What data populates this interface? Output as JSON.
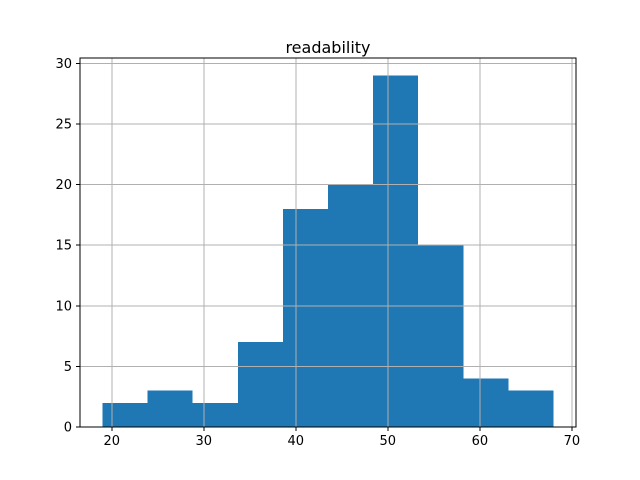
{
  "chart_data": {
    "type": "bar",
    "subtype": "histogram",
    "title": "readability",
    "xlabel": "",
    "ylabel": "",
    "bin_edges": [
      19.0,
      23.9,
      28.8,
      33.7,
      38.6,
      43.5,
      48.4,
      53.3,
      58.2,
      63.1,
      68.0
    ],
    "values": [
      2,
      3,
      2,
      7,
      18,
      20,
      29,
      15,
      4,
      3
    ],
    "total_count": 103,
    "xticks": [
      20,
      30,
      40,
      50,
      60,
      70
    ],
    "yticks": [
      0,
      5,
      10,
      15,
      20,
      25,
      30
    ],
    "xlim": [
      16.55,
      70.45
    ],
    "ylim": [
      0,
      30.45
    ],
    "grid": true,
    "grid_above_bars": true,
    "legend": false,
    "colors": {
      "bar": "#1f77b4",
      "grid": "#b0b0b0",
      "spine": "#000000",
      "text": "#000000",
      "background": "#ffffff"
    }
  }
}
